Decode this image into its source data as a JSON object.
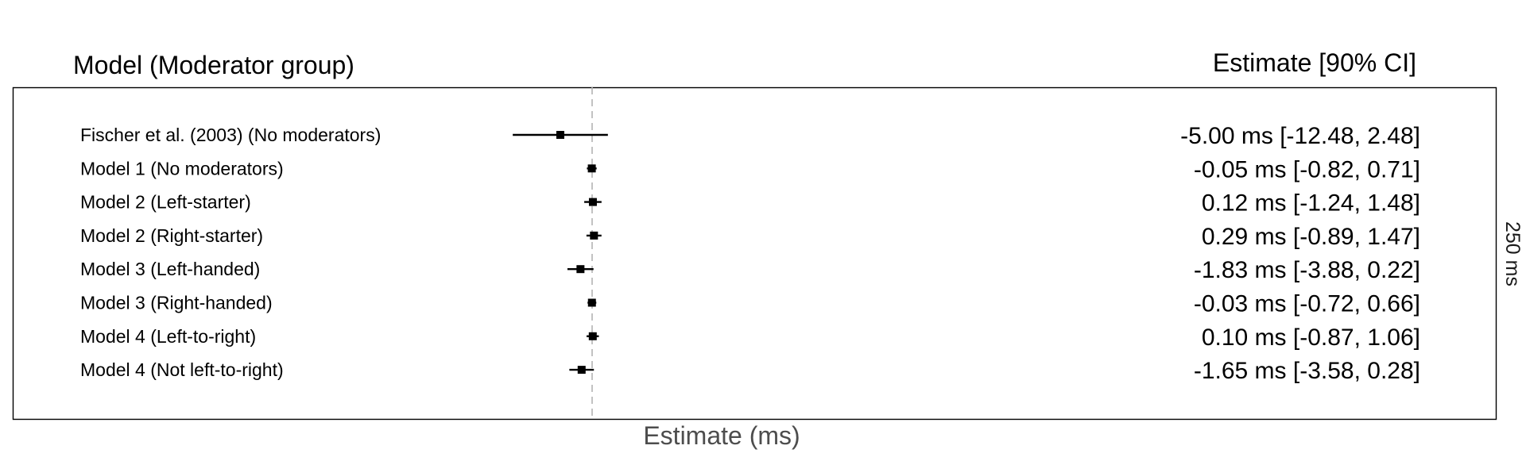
{
  "headers": {
    "left": "Model (Moderator group)",
    "right": "Estimate [90% CI]"
  },
  "chart_data": {
    "type": "forest",
    "xlabel": "Estimate (ms)",
    "side_label": "250 ms",
    "xlim": [
      -25,
      25
    ],
    "reference_line": 0,
    "rows": [
      {
        "label": "Fischer et al. (2003) (No moderators)",
        "estimate": -5.0,
        "lower": -12.48,
        "upper": 2.48,
        "estimate_text": "-5.00 ms [-12.48, 2.48]"
      },
      {
        "label": "Model 1 (No moderators)",
        "estimate": -0.05,
        "lower": -0.82,
        "upper": 0.71,
        "estimate_text": "-0.05 ms [-0.82, 0.71]"
      },
      {
        "label": "Model 2 (Left-starter)",
        "estimate": 0.12,
        "lower": -1.24,
        "upper": 1.48,
        "estimate_text": "0.12 ms [-1.24, 1.48]"
      },
      {
        "label": "Model 2 (Right-starter)",
        "estimate": 0.29,
        "lower": -0.89,
        "upper": 1.47,
        "estimate_text": "0.29 ms [-0.89, 1.47]"
      },
      {
        "label": "Model 3 (Left-handed)",
        "estimate": -1.83,
        "lower": -3.88,
        "upper": 0.22,
        "estimate_text": "-1.83 ms [-3.88, 0.22]"
      },
      {
        "label": "Model 3 (Right-handed)",
        "estimate": -0.03,
        "lower": -0.72,
        "upper": 0.66,
        "estimate_text": "-0.03 ms [-0.72, 0.66]"
      },
      {
        "label": "Model 4 (Left-to-right)",
        "estimate": 0.1,
        "lower": -0.87,
        "upper": 1.06,
        "estimate_text": "0.10 ms [-0.87, 1.06]"
      },
      {
        "label": "Model 4 (Not left-to-right)",
        "estimate": -1.65,
        "lower": -3.58,
        "upper": 0.28,
        "estimate_text": "-1.65 ms [-3.58, 0.28]"
      }
    ],
    "colors": {
      "marker": "#000000",
      "reference_line": "#b3b3b3",
      "panel_border": "#000000",
      "axis_title": "#4d4d4d"
    }
  }
}
